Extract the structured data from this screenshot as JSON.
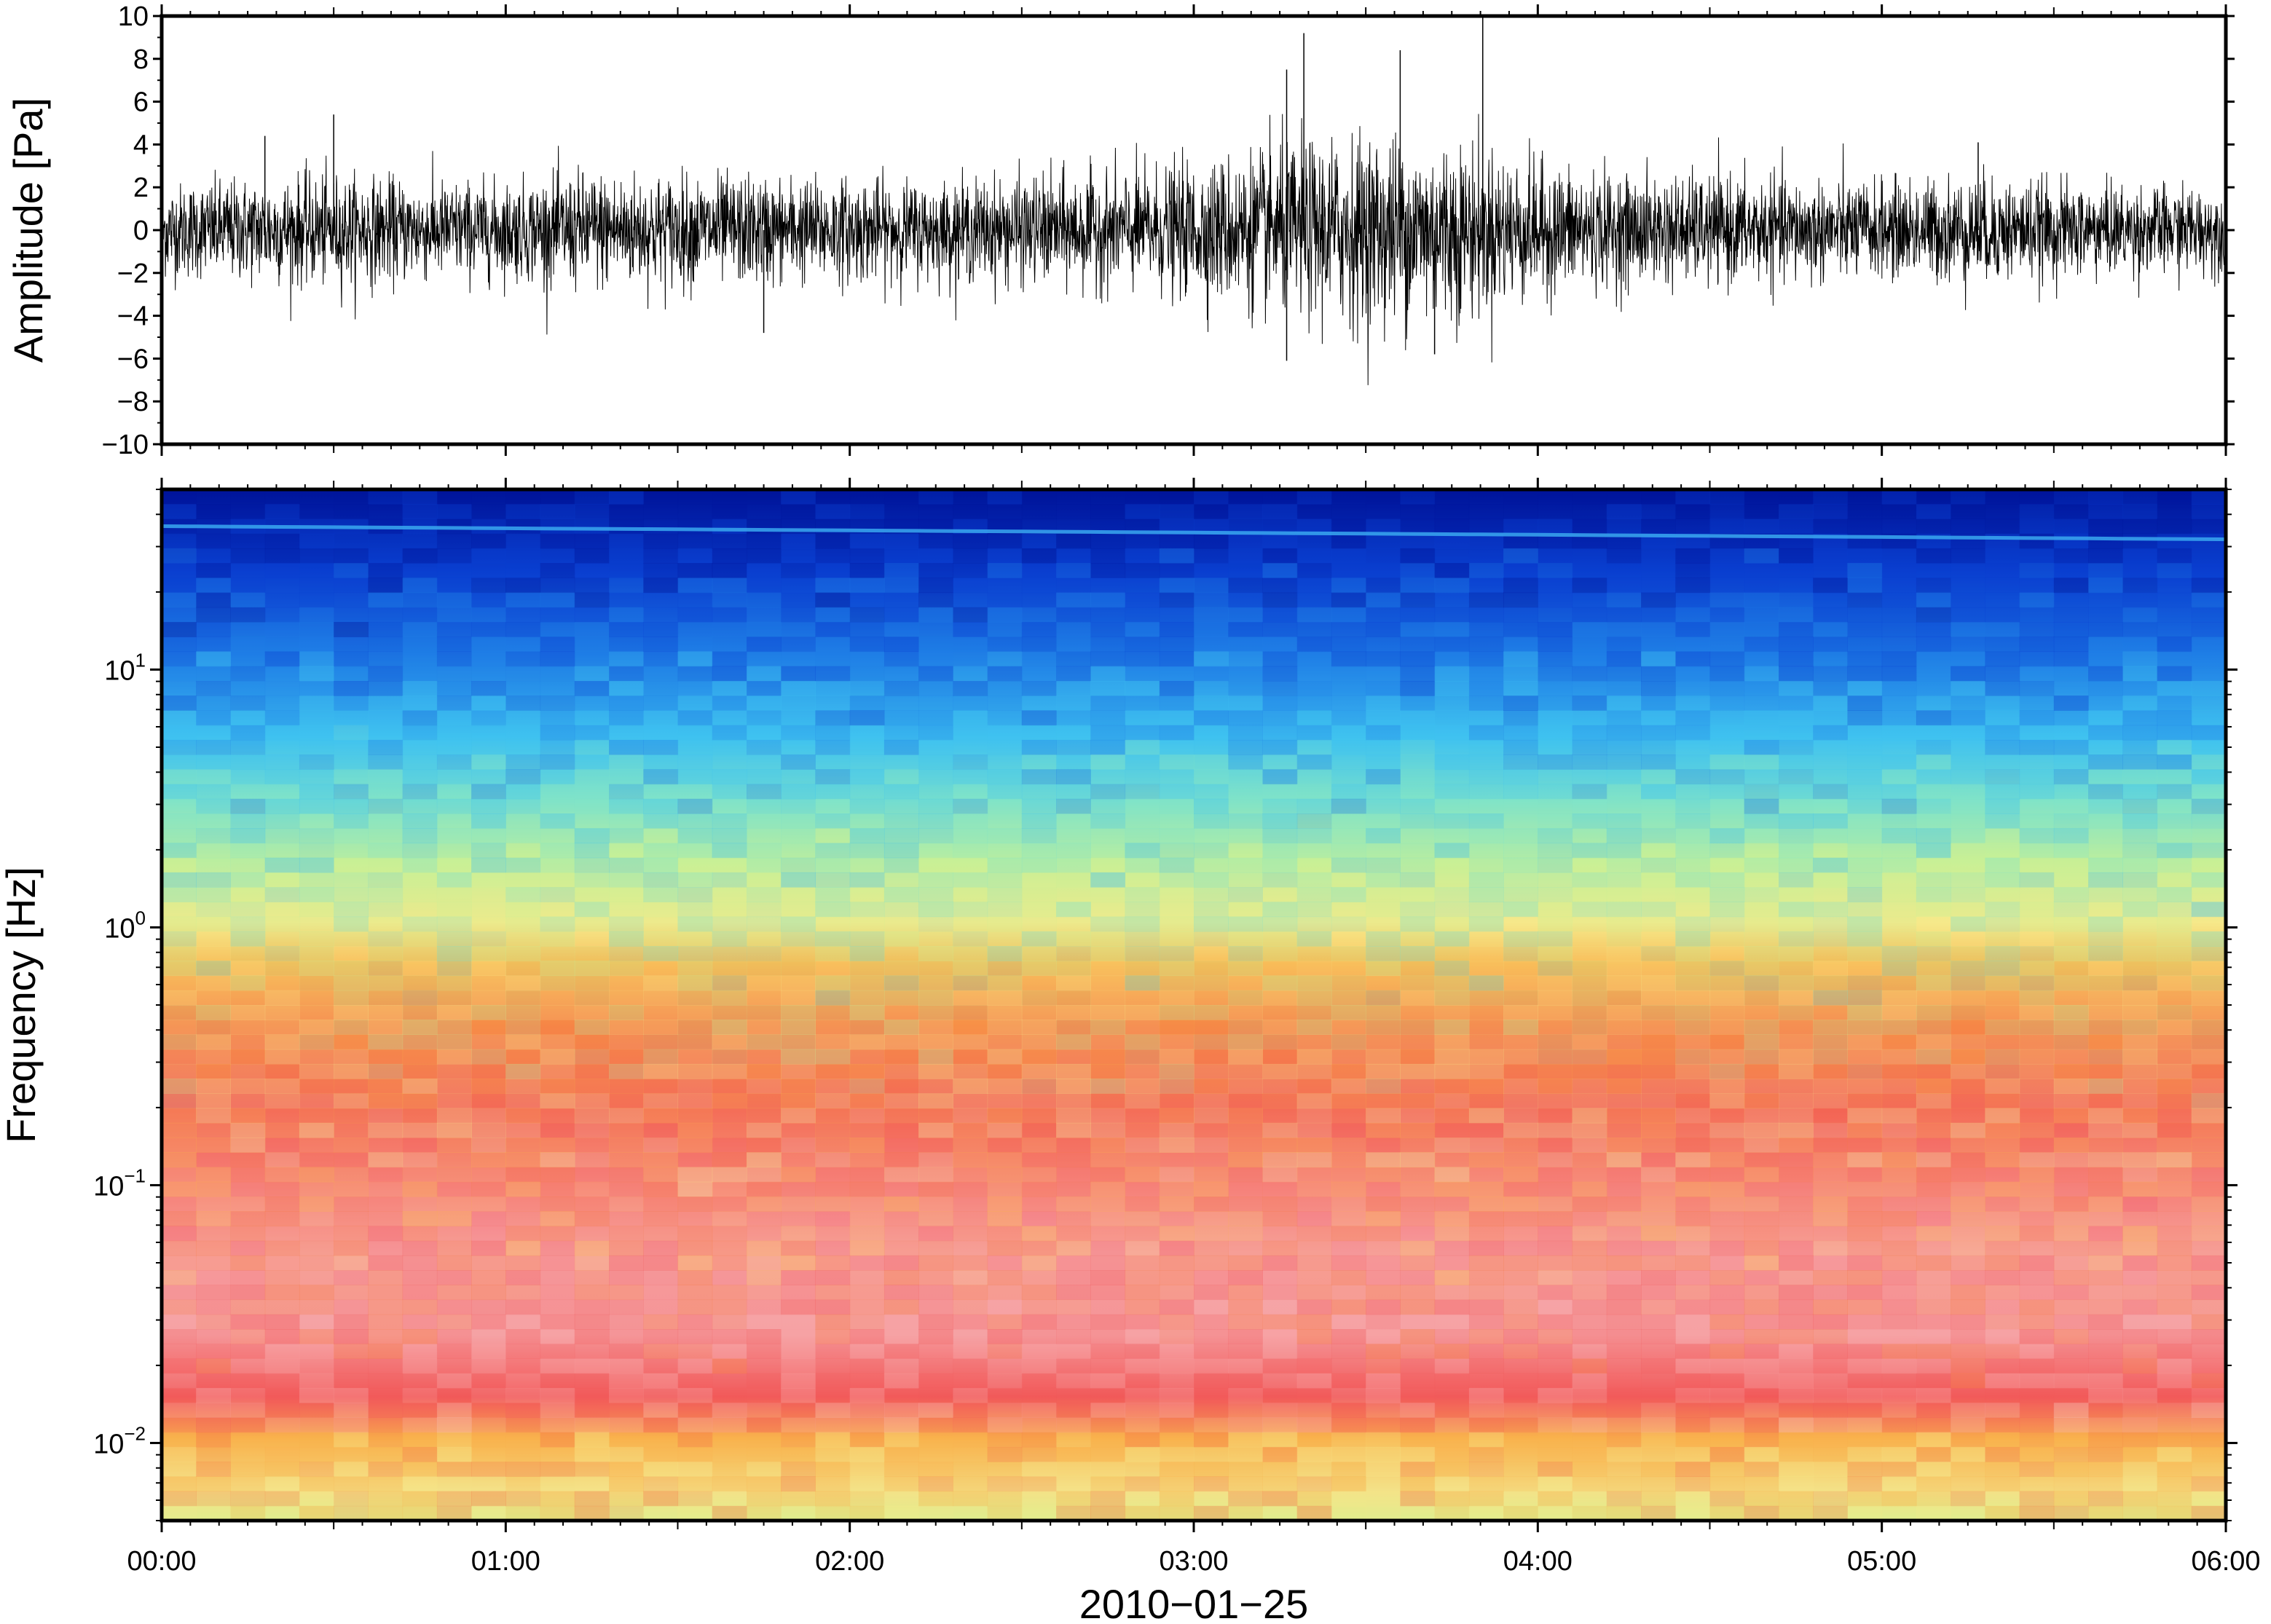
{
  "figure": {
    "date_label": "2010−01−25"
  },
  "chart_data": [
    {
      "type": "line",
      "name": "waveform",
      "ylabel": "Amplitude [Pa]",
      "xlabel": "",
      "xlim": [
        "00:00",
        "06:00"
      ],
      "ylim": [
        -10,
        10
      ],
      "y_ticks": [
        10,
        8,
        6,
        4,
        2,
        0,
        -2,
        -4,
        -6,
        -8,
        -10
      ],
      "y_tick_labels": [
        "10",
        "8",
        "6",
        "4",
        "2",
        "0",
        "−2",
        "−4",
        "−6",
        "−8",
        "−10"
      ],
      "envelope": {
        "time_hours": [
          0.0,
          0.25,
          0.5,
          0.75,
          1.0,
          1.25,
          1.5,
          1.75,
          2.0,
          2.25,
          2.5,
          2.75,
          3.0,
          3.25,
          3.5,
          3.75,
          4.0,
          4.25,
          4.5,
          4.75,
          5.0,
          5.25,
          5.5,
          5.75,
          6.0
        ],
        "peak_pa": [
          2.5,
          2.8,
          3.0,
          2.7,
          2.6,
          3.2,
          3.0,
          2.9,
          2.8,
          2.6,
          2.9,
          3.1,
          3.6,
          4.6,
          5.2,
          5.0,
          3.6,
          3.0,
          2.9,
          2.8,
          2.6,
          2.9,
          2.6,
          2.4,
          2.3
        ]
      },
      "spikes": [
        {
          "t": 0.3,
          "v": 4.4
        },
        {
          "t": 0.5,
          "v": 5.4
        },
        {
          "t": 1.75,
          "v": -4.8
        },
        {
          "t": 3.27,
          "v": 7.5
        },
        {
          "t": 3.32,
          "v": 9.2
        },
        {
          "t": 3.27,
          "v": -6.1
        },
        {
          "t": 3.6,
          "v": 8.4
        },
        {
          "t": 3.84,
          "v": 10.0
        },
        {
          "t": 3.7,
          "v": -5.8
        },
        {
          "t": 5.28,
          "v": 4.1
        }
      ],
      "grid": false,
      "legend": "none"
    },
    {
      "type": "heatmap",
      "name": "spectrogram",
      "ylabel": "Frequency [Hz]",
      "xlabel": "2010−01−25",
      "y_scale": "log",
      "ylim": [
        0.005,
        50
      ],
      "y_ticks": [
        10,
        1,
        0.1,
        0.01
      ],
      "y_tick_labels": [
        {
          "base": "10",
          "exp": "1"
        },
        {
          "base": "10",
          "exp": "0"
        },
        {
          "base": "10",
          "exp": "−1"
        },
        {
          "base": "10",
          "exp": "−2"
        }
      ],
      "x_ticks": [
        "00:00",
        "01:00",
        "02:00",
        "03:00",
        "04:00",
        "05:00",
        "06:00"
      ],
      "colormap": [
        "#00149a",
        "#0a3fd0",
        "#1f7ee6",
        "#3fc2f0",
        "#7fe3c9",
        "#c8f096",
        "#f6e98a",
        "#f9b24d",
        "#f57a45",
        "#f25a5a",
        "#f7a0a0"
      ],
      "tone_line_hz": [
        36,
        32
      ],
      "grid": false,
      "legend": "none"
    }
  ]
}
